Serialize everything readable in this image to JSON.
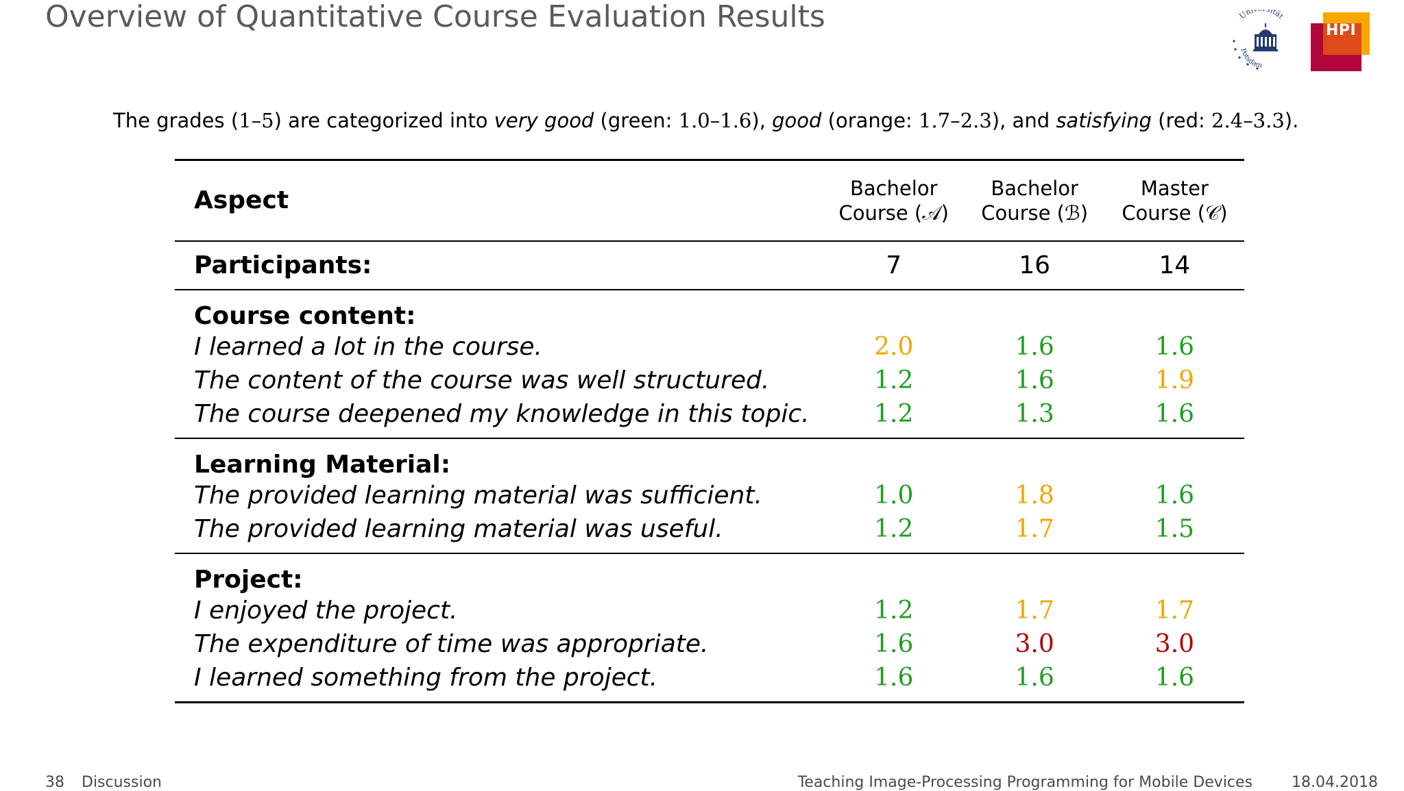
{
  "slide": {
    "title": "Overview of Quantitative Course Evaluation Results",
    "logos": {
      "university_text_top": "Universität",
      "university_text_bottom": "Potsdam",
      "hpi_label": "HPI"
    },
    "legend": {
      "p1": "The grades (",
      "range": "1–5",
      "p2": ") are categorized into ",
      "very_good": "very good",
      "p3": " (green: ",
      "green_range": "1.0–1.6",
      "p4": "), ",
      "good": "good",
      "p5": " (orange: ",
      "orange_range": "1.7–2.3",
      "p6": "), and ",
      "satisfying": "satisfying",
      "p7": " (red: ",
      "red_range": "2.4–3.3",
      "p8": ")."
    },
    "colors": {
      "green": "#1f9e1f",
      "orange": "#f0a500",
      "red": "#b00000"
    },
    "table": {
      "header": {
        "aspect": "Aspect",
        "col_a_line1": "Bachelor",
        "col_a_line2": "Course (𝒜)",
        "col_b_line1": "Bachelor",
        "col_b_line2": "Course (ℬ)",
        "col_c_line1": "Master",
        "col_c_line2": "Course (𝒞)"
      },
      "participants": {
        "label": "Participants:",
        "a": "7",
        "b": "16",
        "c": "14"
      },
      "sections": [
        {
          "title": "Course content:",
          "rows": [
            {
              "label": "I learned a lot in the course.",
              "a": "2.0",
              "b": "1.6",
              "c": "1.6"
            },
            {
              "label": "The content of the course was well structured.",
              "a": "1.2",
              "b": "1.6",
              "c": "1.9"
            },
            {
              "label": "The course deepened my knowledge in this topic.",
              "a": "1.2",
              "b": "1.3",
              "c": "1.6"
            }
          ]
        },
        {
          "title": "Learning Material:",
          "rows": [
            {
              "label": "The provided learning material was sufficient.",
              "a": "1.0",
              "b": "1.8",
              "c": "1.6"
            },
            {
              "label": "The provided learning material was useful.",
              "a": "1.2",
              "b": "1.7",
              "c": "1.5"
            }
          ]
        },
        {
          "title": "Project:",
          "rows": [
            {
              "label": "I enjoyed the project.",
              "a": "1.2",
              "b": "1.7",
              "c": "1.7"
            },
            {
              "label": "The expenditure of time was appropriate.",
              "a": "1.6",
              "b": "3.0",
              "c": "3.0"
            },
            {
              "label": "I learned something from the project.",
              "a": "1.6",
              "b": "1.6",
              "c": "1.6"
            }
          ]
        }
      ]
    },
    "footer": {
      "page_number": "38",
      "section": "Discussion",
      "talk_title": "Teaching Image-Processing Programming for Mobile Devices",
      "date": "18.04.2018"
    }
  }
}
